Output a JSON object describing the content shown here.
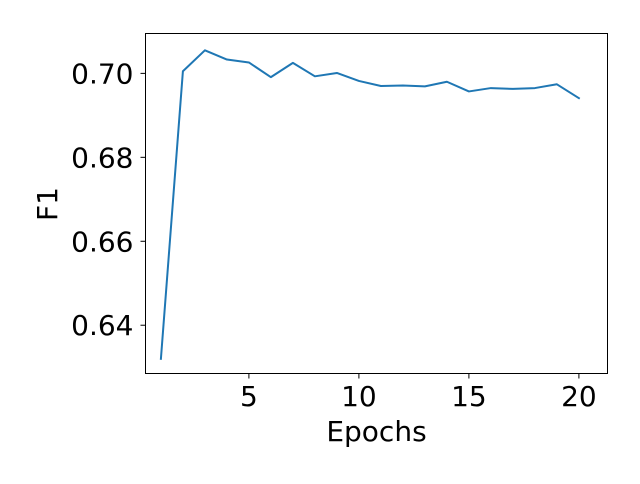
{
  "chart_data": {
    "type": "line",
    "xlabel": "Epochs",
    "ylabel": "F1",
    "xlim": [
      0.3,
      21.3
    ],
    "ylim": [
      0.6285,
      0.7095
    ],
    "xticks": [
      5,
      10,
      15,
      20
    ],
    "yticks": [
      0.64,
      0.66,
      0.68,
      0.7
    ],
    "xtick_labels": [
      "5",
      "10",
      "15",
      "20"
    ],
    "ytick_labels": [
      "0.64",
      "0.66",
      "0.68",
      "0.70"
    ],
    "grid": false,
    "series": [
      {
        "color": "#1f77b4",
        "x": [
          1,
          2,
          3,
          4,
          5,
          6,
          7,
          8,
          9,
          10,
          11,
          12,
          13,
          14,
          15,
          16,
          17,
          18,
          19,
          20
        ],
        "values": [
          0.632,
          0.7005,
          0.7055,
          0.7033,
          0.7026,
          0.6991,
          0.7025,
          0.6993,
          0.7001,
          0.6982,
          0.697,
          0.6971,
          0.6969,
          0.698,
          0.6957,
          0.6965,
          0.6963,
          0.6965,
          0.6974,
          0.6941
        ]
      }
    ]
  }
}
